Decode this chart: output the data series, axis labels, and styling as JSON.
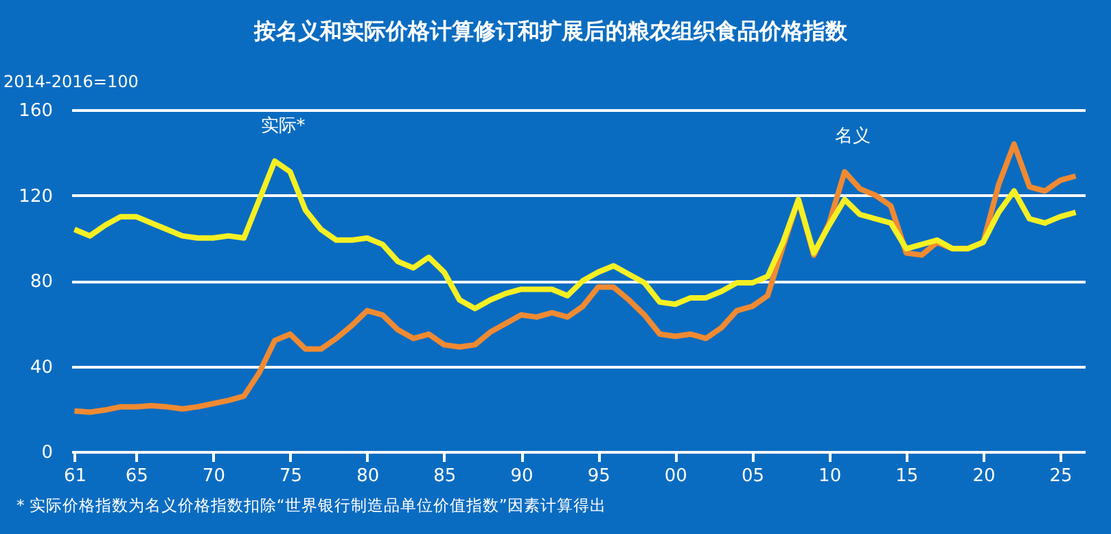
{
  "chart_data": {
    "type": "line",
    "title": "按名义和实际价格计算修订和扩展后的粮农组织食品价格指数",
    "ylabel": "2014-2016=100",
    "annotations": [
      {
        "text": "实际*",
        "x": 1974,
        "y": 136
      },
      {
        "text": "名义",
        "x": 2011,
        "y": 131
      },
      "* 实际价格指数为名义价格指数扣除“世界银行制造品单位价值指数”因素计算得出"
    ],
    "x": [
      1961,
      1962,
      1963,
      1964,
      1965,
      1966,
      1967,
      1968,
      1969,
      1970,
      1971,
      1972,
      1973,
      1974,
      1975,
      1976,
      1977,
      1978,
      1979,
      1980,
      1981,
      1982,
      1983,
      1984,
      1985,
      1986,
      1987,
      1988,
      1989,
      1990,
      1991,
      1992,
      1993,
      1994,
      1995,
      1996,
      1997,
      1998,
      1999,
      2000,
      2001,
      2002,
      2003,
      2004,
      2005,
      2006,
      2007,
      2008,
      2009,
      2010,
      2011,
      2012,
      2013,
      2014,
      2015,
      2016,
      2017,
      2018,
      2019,
      2020,
      2021,
      2022,
      2023,
      2024,
      2025,
      2026
    ],
    "series": [
      {
        "color": "#f08a32",
        "values": [
          19,
          18.5,
          19.5,
          21,
          21,
          21.5,
          21,
          20,
          21,
          22.5,
          24,
          26,
          37,
          52,
          55,
          48,
          48,
          53,
          59,
          66,
          64,
          57,
          53,
          55,
          50,
          49,
          50,
          56,
          60,
          64,
          63,
          65,
          63,
          68,
          77,
          77,
          71,
          64,
          55,
          54,
          55,
          53,
          58,
          66,
          68,
          73,
          96,
          118,
          92,
          107,
          131,
          123,
          120,
          115,
          93,
          92,
          98,
          95,
          95,
          98,
          125,
          144,
          124,
          122,
          127,
          129
        ]
      },
      {
        "color": "#f5f023",
        "values": [
          104,
          101,
          106,
          110,
          110,
          107,
          104,
          101,
          100,
          100,
          101,
          100,
          118,
          136,
          131,
          113,
          104,
          99,
          99,
          100,
          97,
          89,
          86,
          91,
          84,
          71,
          67,
          71,
          74,
          76,
          76,
          76,
          73,
          80,
          84,
          87,
          83,
          79,
          70,
          69,
          72,
          72,
          75,
          79,
          79,
          82,
          98,
          118,
          93,
          106,
          118,
          111,
          109,
          107,
          95,
          97,
          99,
          95,
          95,
          98,
          112,
          122,
          109,
          107,
          110,
          112
        ]
      }
    ],
    "xlim": [
      1960.8,
      2026.6
    ],
    "xticks": [
      {
        "value": 1961,
        "label": "61"
      },
      {
        "value": 1965,
        "label": "65"
      },
      {
        "value": 1970,
        "label": "70"
      },
      {
        "value": 1975,
        "label": "75"
      },
      {
        "value": 1980,
        "label": "80"
      },
      {
        "value": 1985,
        "label": "85"
      },
      {
        "value": 1990,
        "label": "90"
      },
      {
        "value": 1995,
        "label": "95"
      },
      {
        "value": 2000,
        "label": "00"
      },
      {
        "value": 2005,
        "label": "05"
      },
      {
        "value": 2010,
        "label": "10"
      },
      {
        "value": 2015,
        "label": "15"
      },
      {
        "value": 2020,
        "label": "20"
      },
      {
        "value": 2025,
        "label": "25"
      }
    ],
    "ylim": [
      0,
      160
    ],
    "yticks": [
      0,
      40,
      80,
      120,
      160
    ],
    "grid": "y",
    "legend": false,
    "marker": "none",
    "line_style": "solid"
  }
}
